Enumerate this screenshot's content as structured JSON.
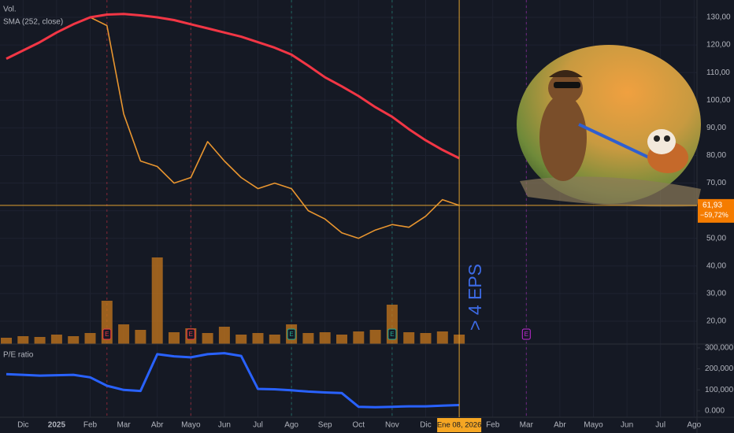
{
  "chart_data": [
    {
      "type": "line",
      "categories": [
        null,
        "Dic",
        null,
        "2025",
        null,
        "Feb",
        null,
        "Mar",
        null,
        "Abr",
        null,
        "Mayo",
        null,
        "Jun",
        null,
        "Jul",
        null,
        "Ago",
        null,
        "Sep",
        null,
        "Oct",
        null,
        "Nov",
        null,
        "Dic",
        null,
        null,
        null,
        "Feb",
        null,
        "Mar",
        null,
        "Abr",
        null,
        "Mayo",
        null,
        "Jun",
        null,
        "Jul",
        null,
        "Ago",
        null
      ],
      "series": [
        {
          "name": "Vol.",
          "type": "bar",
          "color": "#c8781c",
          "values": [
            8,
            10,
            9,
            12,
            10,
            14,
            55,
            25,
            18,
            110,
            15,
            20,
            14,
            22,
            12,
            14,
            12,
            25,
            14,
            15,
            12,
            16,
            18,
            50,
            15,
            14,
            16,
            12,
            null,
            null,
            null,
            null,
            null,
            null,
            null,
            null,
            null,
            null,
            null,
            null,
            null,
            null,
            null
          ]
        },
        {
          "type": "line",
          "color": "#e8952f",
          "values": [
            null,
            null,
            null,
            null,
            null,
            130,
            127,
            95,
            78,
            76,
            70,
            72,
            85,
            78,
            72,
            68,
            70,
            68,
            60,
            57,
            52,
            50,
            53,
            55,
            54,
            58,
            64,
            61.93,
            null,
            null,
            null,
            null,
            null,
            null,
            null,
            null,
            null,
            null,
            null,
            null,
            null,
            null,
            null
          ]
        },
        {
          "name": "SMA (252, close)",
          "type": "line",
          "color": "#f23645",
          "values": [
            115,
            118,
            121,
            124.5,
            127.5,
            130,
            131,
            131.2,
            130.7,
            130,
            129,
            127.5,
            126,
            124.5,
            123,
            121,
            119,
            116.5,
            112.5,
            108.3,
            105,
            101.5,
            97.5,
            94,
            89.5,
            85.5,
            82,
            79,
            null,
            null,
            null,
            null,
            null,
            null,
            null,
            null,
            null,
            null,
            null,
            null,
            null,
            null,
            null
          ]
        }
      ],
      "ylim": [
        11.74,
        136.27
      ],
      "yticks": [
        {
          "value": 130,
          "label": "130,00"
        },
        {
          "value": 120,
          "label": "120,00"
        },
        {
          "value": 110,
          "label": "110,00"
        },
        {
          "value": 100,
          "label": "100,00"
        },
        {
          "value": 90,
          "label": "90,00"
        },
        {
          "value": 80,
          "label": "80,00"
        },
        {
          "value": 70,
          "label": "70,00"
        },
        {
          "value": 60,
          "label": "60,00"
        },
        {
          "value": 50,
          "label": "50,00"
        },
        {
          "value": 40,
          "label": "40,00"
        },
        {
          "value": 30,
          "label": "30,00"
        },
        {
          "value": 20,
          "label": "20,00"
        }
      ],
      "grid": true,
      "last_price": {
        "value": 61.93,
        "label": "61,93"
      },
      "change": {
        "value": -59.72,
        "label": "−59,72%"
      },
      "crosshair_label": "Ene 08, 2026",
      "annotation": "> 4 EPS",
      "earnings": [
        null,
        null,
        null,
        null,
        null,
        null,
        {
          "label": "E",
          "color": "#f23645"
        },
        null,
        null,
        null,
        null,
        {
          "label": "E",
          "color": "#f23645"
        },
        null,
        null,
        null,
        null,
        null,
        {
          "label": "E",
          "color": "#22ab94"
        },
        null,
        null,
        null,
        null,
        null,
        {
          "label": "E",
          "color": "#22ab94"
        },
        null,
        null,
        null,
        null,
        null,
        null,
        null,
        {
          "label": "E",
          "color": "#c42bd8"
        },
        null,
        null,
        null,
        null,
        null,
        null,
        null,
        null,
        null,
        null,
        null
      ]
    },
    {
      "type": "line",
      "title": "P/E ratio",
      "color": "#2962ff",
      "values": [
        175,
        172,
        168,
        170,
        172,
        160,
        120,
        100,
        95,
        270,
        260,
        255,
        270,
        275,
        262,
        105,
        103,
        98,
        92,
        88,
        85,
        20,
        18,
        20,
        22,
        22,
        25,
        28,
        null,
        null,
        null,
        null,
        null,
        null,
        null,
        null,
        null,
        null,
        null,
        null,
        null,
        null,
        null
      ],
      "ylim": [
        -30,
        318.4
      ],
      "yticks": [
        {
          "value": 300,
          "label": "300,000"
        },
        {
          "value": 200,
          "label": "200,000"
        },
        {
          "value": 100,
          "label": "100,000"
        },
        {
          "value": 0,
          "label": "0.000"
        }
      ]
    }
  ]
}
